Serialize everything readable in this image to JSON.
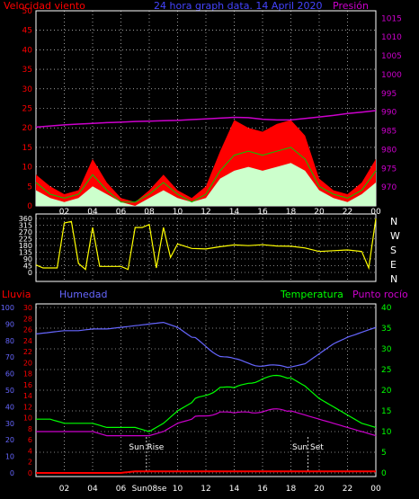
{
  "header": {
    "wind_label": "Velocidad viento",
    "title": "24 hora graph data. 14 April 2020",
    "pressure_label": "Presión"
  },
  "colors": {
    "wind_max": "#ff0000",
    "wind_avg": "#ccffcc",
    "wind_mean": "#00cc00",
    "pressure": "#cc00cc",
    "direction": "#ffff00",
    "rain": "#ff0000",
    "humidity": "#6666ff",
    "temperature": "#00ff00",
    "dewpoint": "#cc00cc",
    "grid": "#ffffff"
  },
  "x_ticks": [
    "02",
    "04",
    "06",
    "08",
    "10",
    "12",
    "14",
    "16",
    "18",
    "20",
    "22",
    "00"
  ],
  "chart_data": [
    {
      "type": "area",
      "name": "wind-pressure",
      "y_left": {
        "label": "Velocidad viento",
        "min": 0,
        "max": 50,
        "ticks": [
          0,
          5,
          10,
          15,
          20,
          25,
          30,
          35,
          40,
          45,
          50
        ]
      },
      "y_right": {
        "label": "Presión",
        "min": 965,
        "max": 1017,
        "ticks": [
          970,
          975,
          980,
          985,
          990,
          995,
          1000,
          1005,
          1010,
          1015
        ]
      },
      "x_hours": [
        0,
        1,
        2,
        3,
        4,
        5,
        6,
        7,
        8,
        9,
        10,
        11,
        12,
        13,
        14,
        15,
        16,
        17,
        18,
        19,
        20,
        21,
        22,
        23,
        24
      ],
      "series": [
        {
          "key": "gust",
          "values": [
            8,
            5,
            3,
            4,
            12,
            6,
            2,
            1,
            4,
            8,
            4,
            2,
            5,
            14,
            22,
            20,
            19,
            21,
            22,
            18,
            7,
            4,
            3,
            6,
            12
          ]
        },
        {
          "key": "average",
          "values": [
            4,
            2,
            1,
            2,
            5,
            3,
            1,
            0,
            2,
            4,
            2,
            1,
            2,
            7,
            9,
            10,
            9,
            10,
            11,
            9,
            4,
            2,
            1,
            3,
            6
          ]
        },
        {
          "key": "mean",
          "values": [
            6,
            3,
            2,
            3,
            8,
            4,
            1,
            1,
            3,
            6,
            3,
            1,
            3,
            9,
            13,
            14,
            13,
            14,
            15,
            12,
            5,
            3,
            2,
            4,
            9
          ]
        },
        {
          "key": "pressure",
          "values": [
            986,
            986.3,
            986.6,
            986.8,
            987,
            987.2,
            987.3,
            987.5,
            987.6,
            987.7,
            987.8,
            988,
            988.2,
            988.4,
            988.6,
            988.5,
            988.1,
            987.9,
            987.9,
            988.3,
            988.7,
            989.1,
            989.6,
            990,
            990.4
          ]
        }
      ],
      "grid": true
    },
    {
      "type": "line",
      "name": "wind-direction",
      "y_left": {
        "min": 0,
        "max": 360,
        "ticks": [
          0,
          45,
          90,
          135,
          180,
          225,
          270,
          315,
          360
        ]
      },
      "y_right_labels": [
        "N",
        "W",
        "S",
        "E",
        "N"
      ],
      "x_hours": [
        0,
        0.5,
        1,
        1.5,
        2,
        2.5,
        3,
        3.5,
        4,
        4.5,
        5,
        5.5,
        6,
        6.5,
        7,
        7.5,
        8,
        8.5,
        9,
        9.5,
        10,
        11,
        12,
        13,
        14,
        15,
        16,
        17,
        18,
        19,
        20,
        21,
        22,
        23,
        23.5,
        24
      ],
      "series": [
        {
          "key": "direction",
          "values": [
            50,
            30,
            30,
            30,
            330,
            340,
            60,
            20,
            300,
            40,
            40,
            40,
            40,
            20,
            300,
            300,
            320,
            30,
            300,
            100,
            190,
            170,
            165,
            175,
            180,
            170,
            175,
            170,
            175,
            170,
            140,
            145,
            150,
            140,
            30,
            360
          ]
        }
      ],
      "grid": true
    },
    {
      "type": "line",
      "name": "rain-humidity-temp",
      "labels": {
        "rain": "Lluvia",
        "humidity": "Humedad",
        "temperature": "Temperatura",
        "dewpoint": "Punto rocío"
      },
      "y_humidity": {
        "min": 0,
        "max": 100,
        "ticks": [
          0,
          10,
          20,
          30,
          40,
          50,
          60,
          70,
          80,
          90,
          100
        ]
      },
      "y_rain": {
        "min": 0,
        "max": 30,
        "ticks": [
          0,
          2,
          4,
          6,
          8,
          10,
          12,
          14,
          16,
          18,
          20,
          22,
          24,
          26,
          28,
          30
        ]
      },
      "y_temp": {
        "min": 0,
        "max": 40,
        "ticks": [
          0,
          5,
          10,
          15,
          20,
          25,
          30,
          35,
          40
        ]
      },
      "x_hours": [
        0,
        1,
        2,
        3,
        4,
        5,
        6,
        7,
        8,
        9,
        10,
        11,
        12,
        13,
        14,
        15,
        16,
        17,
        18,
        19,
        20,
        21,
        22,
        23,
        24
      ],
      "series": [
        {
          "key": "humidity",
          "values": [
            84,
            85,
            86,
            86,
            87,
            87,
            88,
            89,
            90,
            91,
            88,
            82,
            77,
            71,
            68,
            67,
            65,
            64,
            64,
            66,
            72,
            78,
            82,
            85,
            88
          ]
        },
        {
          "key": "temperature",
          "values": [
            13,
            13,
            12,
            12,
            12,
            11,
            11,
            11,
            10,
            12,
            15,
            17,
            19,
            21,
            20,
            22,
            23,
            23,
            23,
            21,
            18,
            16,
            14,
            12,
            11
          ]
        },
        {
          "key": "dewpoint",
          "values": [
            10,
            10,
            10,
            10,
            10,
            9,
            9,
            9,
            9,
            10,
            12,
            13,
            14,
            15,
            14,
            15,
            15,
            15,
            15,
            14,
            13,
            12,
            11,
            10,
            9
          ]
        },
        {
          "key": "rain",
          "values": [
            0,
            0,
            0,
            0,
            0,
            0,
            0,
            0.3,
            0.3,
            0.3,
            0.3,
            0.3,
            0.3,
            0.3,
            0.3,
            0.3,
            0.3,
            0.3,
            0.3,
            0.3,
            0.3,
            0.3,
            0.3,
            0.3,
            0.3
          ]
        }
      ],
      "annotations": [
        {
          "text": "Sun Rise",
          "hour": 7.8
        },
        {
          "text": "Sun Set",
          "hour": 19.2
        }
      ],
      "x_tick_override": {
        "08": "Sun08se"
      },
      "grid": true
    }
  ]
}
